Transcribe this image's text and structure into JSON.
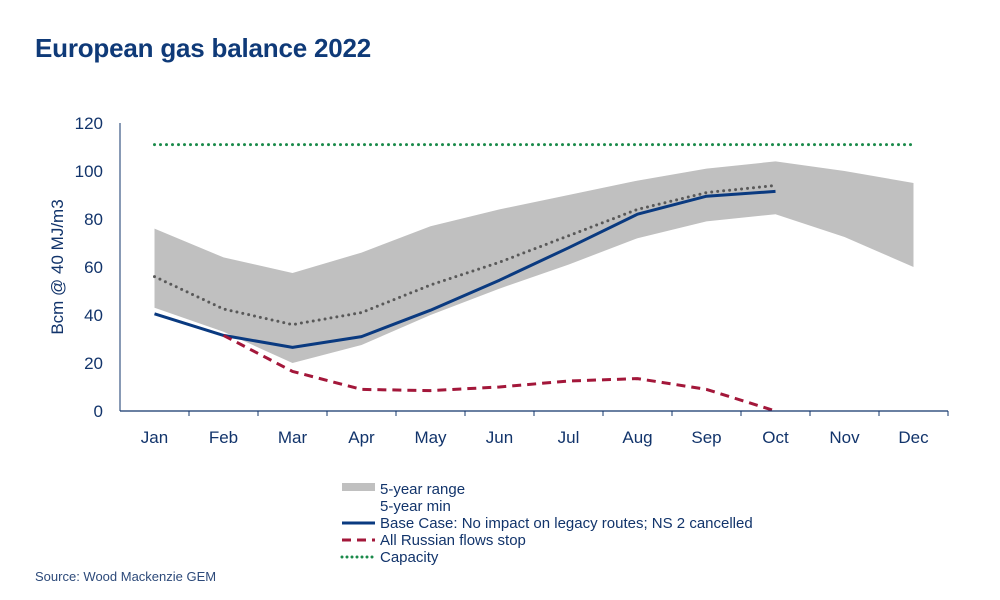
{
  "title": "European gas balance 2022",
  "source": "Source: Wood Mackenzie GEM",
  "chart_data": {
    "type": "line",
    "title": "European gas balance 2022",
    "xlabel": "",
    "ylabel": "Bcm @ 40 MJ/m3",
    "ylim": [
      0,
      120
    ],
    "yticks": [
      0,
      20,
      40,
      60,
      80,
      100,
      120
    ],
    "grid": false,
    "legend_position": "bottom",
    "categories": [
      "Jan",
      "Feb",
      "Mar",
      "Apr",
      "May",
      "Jun",
      "Jul",
      "Aug",
      "Sep",
      "Oct",
      "Nov",
      "Dec"
    ],
    "range": {
      "name": "5-year range",
      "color": "#c0c0c0",
      "min": [
        43,
        33,
        20,
        27.5,
        40,
        51,
        61,
        72,
        79,
        82,
        72.5,
        60
      ],
      "max": [
        76,
        64,
        57.5,
        66,
        77,
        84,
        90,
        96,
        101,
        104,
        100,
        95
      ]
    },
    "min_label": "5-year min",
    "series": [
      {
        "color": "#595959",
        "style": "dotted",
        "values": [
          56,
          42.5,
          36,
          41,
          52.5,
          62,
          73,
          84,
          91,
          94,
          null,
          null
        ]
      },
      {
        "name": "Base Case: No impact on legacy routes; NS 2 cancelled",
        "color": "#0a3a80",
        "style": "solid",
        "values": [
          40.5,
          31.5,
          26.5,
          31,
          42,
          54.5,
          68,
          82,
          89.5,
          91.5,
          null,
          null
        ]
      },
      {
        "name": "All Russian flows stop",
        "color": "#a3173a",
        "style": "dashed",
        "values": [
          null,
          31.5,
          16.5,
          9,
          8.5,
          10,
          12.5,
          13.5,
          9,
          0,
          null,
          null
        ]
      },
      {
        "name": "Capacity",
        "color": "#1a8a4a",
        "style": "dotted",
        "values": [
          111,
          111,
          111,
          111,
          111,
          111,
          111,
          111,
          111,
          111,
          111,
          111
        ]
      }
    ]
  }
}
